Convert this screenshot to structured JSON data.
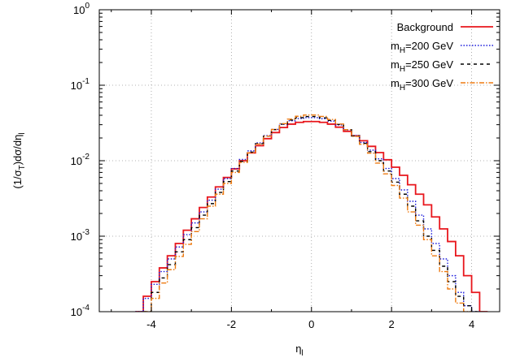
{
  "chart_data": {
    "type": "line",
    "ylabel": "(1/σ_T)dσ/dη_l",
    "xlabel": "η_l",
    "xlim": [
      -5.3,
      4.7
    ],
    "ylim": [
      0.0001,
      1
    ],
    "yscale": "log",
    "grid": true,
    "legend_position": "top-right",
    "x_ticks": [
      "-4",
      "-2",
      "0",
      "2",
      "4"
    ],
    "y_ticks": [
      {
        "base": "10",
        "exp": "0"
      },
      {
        "base": "10",
        "exp": "-1"
      },
      {
        "base": "10",
        "exp": "-2"
      },
      {
        "base": "10",
        "exp": "-3"
      },
      {
        "base": "10",
        "exp": "-4"
      }
    ],
    "series": [
      {
        "name": "Background",
        "legend_main": "Background",
        "legend_sub": "",
        "legend_suffix": "",
        "color": "#e8161c",
        "style": "solid",
        "x": [
          -4.3,
          -4.1,
          -3.9,
          -3.7,
          -3.5,
          -3.3,
          -3.1,
          -2.9,
          -2.7,
          -2.5,
          -2.3,
          -2.1,
          -1.9,
          -1.7,
          -1.5,
          -1.3,
          -1.1,
          -0.9,
          -0.7,
          -0.5,
          -0.3,
          -0.1,
          0.1,
          0.3,
          0.5,
          0.7,
          0.9,
          1.1,
          1.3,
          1.5,
          1.7,
          1.9,
          2.1,
          2.3,
          2.5,
          2.7,
          2.9,
          3.1,
          3.3,
          3.5,
          3.7,
          3.9,
          4.1,
          4.3
        ],
        "y": [
          0.0001,
          0.00016,
          0.00025,
          0.00038,
          0.00055,
          0.0008,
          0.0012,
          0.0017,
          0.0024,
          0.0033,
          0.0045,
          0.006,
          0.0078,
          0.01,
          0.0127,
          0.0158,
          0.0196,
          0.0236,
          0.0275,
          0.0305,
          0.0322,
          0.033,
          0.033,
          0.0322,
          0.0305,
          0.0278,
          0.0245,
          0.0214,
          0.0184,
          0.0155,
          0.0128,
          0.0103,
          0.0082,
          0.0064,
          0.0048,
          0.0036,
          0.0026,
          0.0018,
          0.00125,
          0.00085,
          0.00055,
          0.0003,
          0.00018,
          0.0001
        ]
      },
      {
        "name": "m_H=200 GeV",
        "legend_main": "m",
        "legend_sub": "H",
        "legend_suffix": "=200 GeV",
        "color": "#1a1adc",
        "style": "dotted",
        "x": [
          -4.3,
          -4.1,
          -3.9,
          -3.7,
          -3.5,
          -3.3,
          -3.1,
          -2.9,
          -2.7,
          -2.5,
          -2.3,
          -2.1,
          -1.9,
          -1.7,
          -1.5,
          -1.3,
          -1.1,
          -0.9,
          -0.7,
          -0.5,
          -0.3,
          -0.1,
          0.1,
          0.3,
          0.5,
          0.7,
          0.9,
          1.1,
          1.3,
          1.5,
          1.7,
          1.9,
          2.1,
          2.3,
          2.5,
          2.7,
          2.9,
          3.1,
          3.3,
          3.5,
          3.7,
          3.9,
          4.1
        ],
        "y": [
          0.0001,
          0.00015,
          0.00023,
          0.00034,
          0.0005,
          0.00072,
          0.00105,
          0.0015,
          0.0021,
          0.003,
          0.0042,
          0.0058,
          0.0079,
          0.0104,
          0.0135,
          0.0172,
          0.0215,
          0.026,
          0.0304,
          0.0338,
          0.0362,
          0.0372,
          0.0372,
          0.036,
          0.0335,
          0.0298,
          0.0256,
          0.0215,
          0.0175,
          0.0138,
          0.0106,
          0.0079,
          0.0058,
          0.0041,
          0.0029,
          0.0019,
          0.00125,
          0.0008,
          0.0005,
          0.0003,
          0.00018,
          0.00012,
          0.0001
        ]
      },
      {
        "name": "m_H=250 GeV",
        "legend_main": "m",
        "legend_sub": "H",
        "legend_suffix": "=250 GeV",
        "color": "#000000",
        "style": "dashed",
        "x": [
          -4.1,
          -3.9,
          -3.7,
          -3.5,
          -3.3,
          -3.1,
          -2.9,
          -2.7,
          -2.5,
          -2.3,
          -2.1,
          -1.9,
          -1.7,
          -1.5,
          -1.3,
          -1.1,
          -0.9,
          -0.7,
          -0.5,
          -0.3,
          -0.1,
          0.1,
          0.3,
          0.5,
          0.7,
          0.9,
          1.1,
          1.3,
          1.5,
          1.7,
          1.9,
          2.1,
          2.3,
          2.5,
          2.7,
          2.9,
          3.1,
          3.3,
          3.5,
          3.7,
          3.9,
          4.1
        ],
        "y": [
          0.0001,
          0.00018,
          0.00028,
          0.00042,
          0.00062,
          0.0009,
          0.0013,
          0.0019,
          0.0027,
          0.0038,
          0.0053,
          0.0073,
          0.0098,
          0.013,
          0.0168,
          0.0212,
          0.0258,
          0.0305,
          0.0345,
          0.0372,
          0.0385,
          0.0385,
          0.037,
          0.0342,
          0.0302,
          0.0258,
          0.0213,
          0.017,
          0.0132,
          0.01,
          0.0073,
          0.0052,
          0.0036,
          0.0025,
          0.0016,
          0.001,
          0.00065,
          0.0004,
          0.00025,
          0.00016,
          0.00012,
          0.0001
        ]
      },
      {
        "name": "m_H=300 GeV",
        "legend_main": "m",
        "legend_sub": "H",
        "legend_suffix": "=300 GeV",
        "color": "#ee7a10",
        "style": "dashdot",
        "x": [
          -4.1,
          -3.9,
          -3.7,
          -3.5,
          -3.3,
          -3.1,
          -2.9,
          -2.7,
          -2.5,
          -2.3,
          -2.1,
          -1.9,
          -1.7,
          -1.5,
          -1.3,
          -1.1,
          -0.9,
          -0.7,
          -0.5,
          -0.3,
          -0.1,
          0.1,
          0.3,
          0.5,
          0.7,
          0.9,
          1.1,
          1.3,
          1.5,
          1.7,
          1.9,
          2.1,
          2.3,
          2.5,
          2.7,
          2.9,
          3.1,
          3.3,
          3.5,
          3.7,
          3.9
        ],
        "y": [
          0.0001,
          0.00015,
          0.00024,
          0.00036,
          0.00054,
          0.00078,
          0.00115,
          0.0017,
          0.0025,
          0.0036,
          0.005,
          0.007,
          0.0095,
          0.0127,
          0.0166,
          0.0212,
          0.026,
          0.031,
          0.0355,
          0.0388,
          0.0403,
          0.0403,
          0.0386,
          0.0352,
          0.0306,
          0.0258,
          0.021,
          0.0165,
          0.0126,
          0.0093,
          0.0067,
          0.0047,
          0.0032,
          0.0021,
          0.0014,
          0.0009,
          0.00055,
          0.00034,
          0.0002,
          0.00013,
          0.0001
        ]
      }
    ]
  }
}
